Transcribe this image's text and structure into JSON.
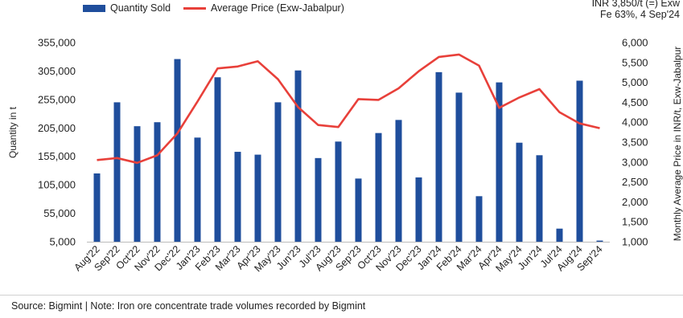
{
  "chart_data": {
    "type": "bar",
    "legend_position": "top-left",
    "categories": [
      "Aug'22",
      "Sep'22",
      "Oct'22",
      "Nov'22",
      "Dec'22",
      "Jan'23",
      "Feb'23",
      "Mar'23",
      "Apr'23",
      "May'23",
      "Jun'23",
      "Jul'23",
      "Aug'23",
      "Sep'23",
      "Oct'23",
      "Nov'23",
      "Dec'23",
      "Jan'24",
      "Feb'24",
      "Mar'24",
      "Apr'24",
      "May'24",
      "Jun'24",
      "Jul'24",
      "Aug'24",
      "Sep'24"
    ],
    "series": [
      {
        "name": "Quantity Sold",
        "type": "bar",
        "axis": "left",
        "color": "#1f4e9c",
        "values": [
          125000,
          250000,
          208000,
          215000,
          326000,
          188000,
          294000,
          163000,
          158000,
          250000,
          306000,
          152000,
          181000,
          116000,
          196000,
          219000,
          118000,
          303000,
          267000,
          85000,
          285000,
          179000,
          157000,
          28000,
          288000,
          7000
        ]
      },
      {
        "name": "Average Price (Exw-Jabalpur)",
        "type": "line",
        "axis": "right",
        "color": "#e8403a",
        "values": [
          3050,
          3100,
          2980,
          3170,
          3720,
          4520,
          5350,
          5400,
          5530,
          5080,
          4380,
          3930,
          3880,
          4580,
          4560,
          4850,
          5280,
          5640,
          5700,
          5420,
          4360,
          4620,
          4830,
          4250,
          3970,
          3850
        ]
      }
    ],
    "y_left": {
      "label": "Quantity in t",
      "min": 5000,
      "max": 355000,
      "ticks": [
        "5,000",
        "55,000",
        "105,000",
        "155,000",
        "205,000",
        "255,000",
        "305,000",
        "355,000"
      ]
    },
    "y_right": {
      "label": "Monthly Average Price in INR/t, Exw-Jabalpur",
      "min": 1000,
      "max": 6000,
      "ticks": [
        "1,000",
        "1,500",
        "2,000",
        "2,500",
        "3,000",
        "3,500",
        "4,000",
        "4,500",
        "5,000",
        "5,500",
        "6,000"
      ]
    },
    "annotation": [
      "INR 3,850/t (=) Exw",
      "Fe 63%, 4 Sep'24"
    ],
    "grid": false
  },
  "source_note": "Source: Bigmint | Note: Iron ore concentrate trade volumes recorded by Bigmint"
}
